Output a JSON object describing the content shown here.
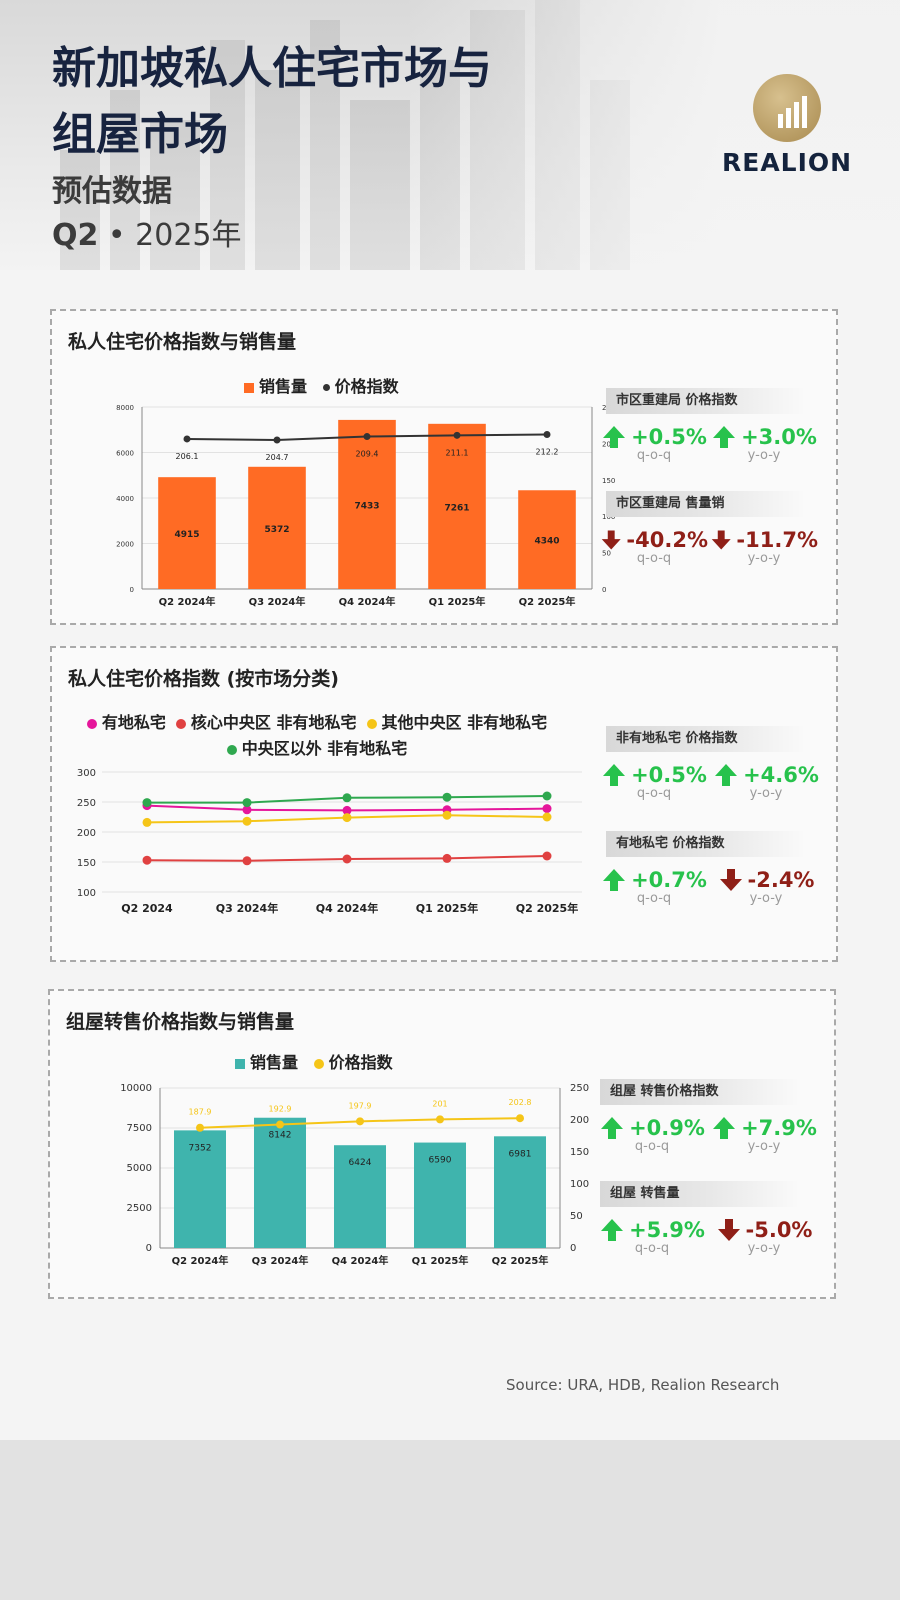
{
  "header": {
    "title_line1": "新加坡私人住宅市场与",
    "title_line2": "组屋市场",
    "subtitle": "预估数据",
    "period_bold": "Q2",
    "period_rest": " • 2025年",
    "logo_text": "REALION"
  },
  "colors": {
    "orange": "#ff6b24",
    "teal": "#3fb4ad",
    "up": "#27c24c",
    "down": "#8f1f17",
    "line_dark": "#333333",
    "line_yellow": "#f5c518"
  },
  "panels": {
    "p1": {
      "title": "私人住宅价格指数与销售量",
      "legend_sales": "销售量",
      "legend_index": "价格指数",
      "stats": [
        {
          "label": "市区重建局 价格指数",
          "items": [
            {
              "value": "+0.5%",
              "period": "q-o-q",
              "dir": "up"
            },
            {
              "value": "+3.0%",
              "period": "y-o-y",
              "dir": "up"
            }
          ]
        },
        {
          "label": "市区重建局 售量销",
          "items": [
            {
              "value": "-40.2%",
              "period": "q-o-q",
              "dir": "down"
            },
            {
              "value": "-11.7%",
              "period": "y-o-y",
              "dir": "down"
            }
          ]
        }
      ]
    },
    "p2": {
      "title": "私人住宅价格指数 (按市场分类)",
      "stats": [
        {
          "label": "非有地私宅 价格指数",
          "items": [
            {
              "value": "+0.5%",
              "period": "q-o-q",
              "dir": "up"
            },
            {
              "value": "+4.6%",
              "period": "y-o-y",
              "dir": "up"
            }
          ]
        },
        {
          "label": "有地私宅 价格指数",
          "items": [
            {
              "value": "+0.7%",
              "period": "q-o-q",
              "dir": "up"
            },
            {
              "value": "-2.4%",
              "period": "y-o-y",
              "dir": "down"
            }
          ]
        }
      ]
    },
    "p3": {
      "title": "组屋转售价格指数与销售量",
      "legend_sales": "销售量",
      "legend_index": "价格指数",
      "stats": [
        {
          "label": "组屋 转售价格指数",
          "items": [
            {
              "value": "+0.9%",
              "period": "q-o-q",
              "dir": "up"
            },
            {
              "value": "+7.9%",
              "period": "y-o-y",
              "dir": "up"
            }
          ]
        },
        {
          "label": "组屋 转售量",
          "items": [
            {
              "value": "+5.9%",
              "period": "q-o-q",
              "dir": "up"
            },
            {
              "value": "-5.0%",
              "period": "y-o-y",
              "dir": "down"
            }
          ]
        }
      ]
    }
  },
  "source": "Source: URA, HDB,  Realion Research",
  "chart_data": [
    {
      "type": "bar",
      "title": "私人住宅价格指数与销售量",
      "categories": [
        "Q2 2024年",
        "Q3 2024年",
        "Q4 2024年",
        "Q1 2025年",
        "Q2 2025年"
      ],
      "series": [
        {
          "name": "销售量",
          "type": "bar",
          "axis": "left",
          "values": [
            4915,
            5372,
            7433,
            7261,
            4340
          ],
          "labels": [
            "4915",
            "5372",
            "7433",
            "7261",
            "4340"
          ]
        },
        {
          "name": "价格指数",
          "type": "line",
          "axis": "right",
          "values": [
            206.1,
            204.7,
            209.4,
            211.1,
            212.2
          ],
          "labels": [
            "206.1",
            "204.7",
            "209.4",
            "211.1",
            "212.2"
          ]
        }
      ],
      "ylim_left": [
        0,
        8000
      ],
      "yticks_left": [
        "0",
        "2000",
        "4000",
        "6000",
        "8000"
      ],
      "ylim_right": [
        0,
        250
      ],
      "yticks_right": [
        "0",
        "50",
        "100",
        "150",
        "200",
        "250"
      ],
      "grid": true,
      "legend": "top"
    },
    {
      "type": "line",
      "title": "私人住宅价格指数 (按市场分类)",
      "categories": [
        "Q2 2024",
        "Q3 2024年",
        "Q4 2024年",
        "Q1 2025年",
        "Q2 2025年"
      ],
      "series": [
        {
          "name": "有地私宅",
          "color": "#e5169b",
          "values": [
            244,
            237,
            236,
            237,
            239
          ]
        },
        {
          "name": "核心中央区 非有地私宅",
          "color": "#e04141",
          "values": [
            153,
            152,
            155,
            156,
            160
          ]
        },
        {
          "name": "其他中央区 非有地私宅",
          "color": "#f5c518",
          "values": [
            216,
            218,
            224,
            228,
            225
          ]
        },
        {
          "name": "中央区以外 非有地私宅",
          "color": "#2fa84f",
          "values": [
            249,
            249,
            257,
            258,
            260
          ]
        }
      ],
      "ylim": [
        100,
        300
      ],
      "yticks": [
        "100",
        "150",
        "200",
        "250",
        "300"
      ],
      "grid": true,
      "legend": "top"
    },
    {
      "type": "bar",
      "title": "组屋转售价格指数与销售量",
      "categories": [
        "Q2 2024年",
        "Q3 2024年",
        "Q4 2024年",
        "Q1 2025年",
        "Q2 2025年"
      ],
      "series": [
        {
          "name": "销售量",
          "type": "bar",
          "axis": "left",
          "values": [
            7352,
            8142,
            6424,
            6590,
            6981
          ],
          "labels": [
            "7352",
            "8142",
            "6424",
            "6590",
            "6981"
          ]
        },
        {
          "name": "价格指数",
          "type": "line",
          "axis": "right",
          "values": [
            187.9,
            192.9,
            197.9,
            201,
            202.8
          ],
          "labels": [
            "187.9",
            "192.9",
            "197.9",
            "201",
            "202.8"
          ]
        }
      ],
      "ylim_left": [
        0,
        10000
      ],
      "yticks_left": [
        "0",
        "2500",
        "5000",
        "7500",
        "10000"
      ],
      "ylim_right": [
        0,
        250
      ],
      "yticks_right": [
        "0",
        "50",
        "100",
        "150",
        "200",
        "250"
      ],
      "grid": true,
      "legend": "top"
    }
  ]
}
